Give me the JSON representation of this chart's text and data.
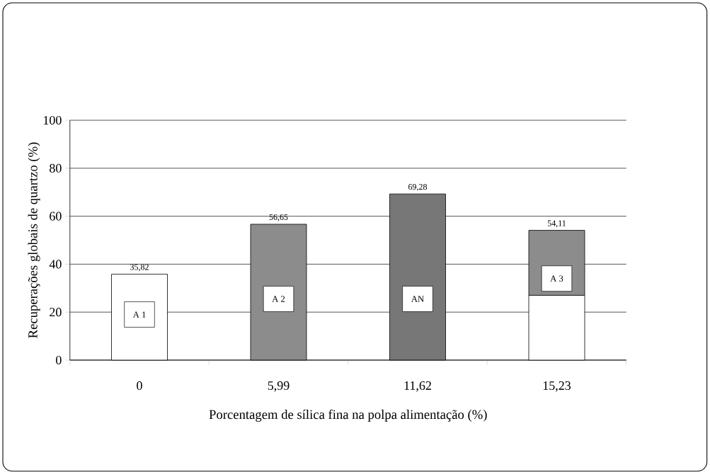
{
  "chart_data": {
    "type": "bar",
    "stacked": true,
    "xlabel": "Porcentagem de sílica fina na polpa alimentação (%)",
    "ylabel": "Recuperações globais de quartzo (%)",
    "categories": [
      "0",
      "5,99",
      "11,62",
      "15,23"
    ],
    "series": [
      {
        "colors": [
          "#ffffff",
          "#ffffff",
          "#ffffff",
          "#ffffff"
        ],
        "values": [
          35.82,
          null,
          null,
          27
        ]
      },
      {
        "colors": [
          "#8c8c8c",
          "#8c8c8c",
          "#777777",
          "#8c8c8c"
        ],
        "values": [
          null,
          56.65,
          69.28,
          27.11
        ]
      }
    ],
    "totals": [
      "35,82",
      "56,65",
      "69,28",
      "54,11"
    ],
    "annotations": [
      {
        "text": "A 1",
        "x": "0",
        "y": 19
      },
      {
        "text": "A 2",
        "x": "5,99",
        "y": 25.5
      },
      {
        "text": "AN",
        "x": "11,62",
        "y": 25.5
      },
      {
        "text": "A 3",
        "x": "15,23",
        "y": 34
      }
    ],
    "ylim": [
      0,
      100
    ],
    "yticks": [
      0,
      20,
      40,
      60,
      80,
      100
    ],
    "grid": "y"
  }
}
